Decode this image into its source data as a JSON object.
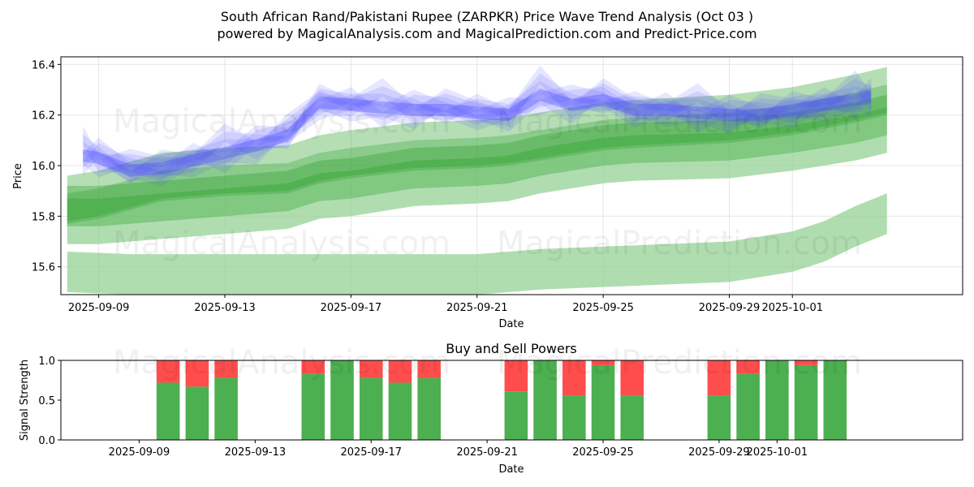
{
  "figure": {
    "title_line1": "South African Rand/Pakistani Rupee (ZARPKR) Price Wave Trend Analysis (Oct 03 )",
    "title_line2": "powered by MagicalAnalysis.com and MagicalPrediction.com and Predict-Price.com"
  },
  "watermarks": {
    "left": "MagicalAnalysis.com",
    "right": "MagicalPrediction.com"
  },
  "colors": {
    "blue_band": "#4d4dff",
    "green_band": "#2ca02c",
    "light_green_band": "#8fcf8f",
    "buy": "#4caf50",
    "sell": "#ff4d4d",
    "grid": "#e6e6e6"
  },
  "chart_data": [
    {
      "type": "area",
      "name": "price-wave-chart",
      "title": "",
      "xlabel": "Date",
      "ylabel": "Price",
      "x_ticks": [
        "2025-09-09",
        "2025-09-13",
        "2025-09-17",
        "2025-09-21",
        "2025-09-25",
        "2025-09-29",
        "2025-10-01"
      ],
      "y_ticks": [
        "15.6",
        "15.8",
        "16.0",
        "16.2",
        "16.4"
      ],
      "x_range": [
        "2025-09-07.8",
        "2025-10-06.4"
      ],
      "ylim": [
        15.49,
        16.43
      ],
      "grid": true,
      "series": [
        {
          "name": "blue-wave-center",
          "x": [
            "2025-09-08.5",
            "2025-09-09",
            "2025-09-10",
            "2025-09-11",
            "2025-09-12",
            "2025-09-13",
            "2025-09-14",
            "2025-09-15",
            "2025-09-16",
            "2025-09-17",
            "2025-09-18",
            "2025-09-19",
            "2025-09-20",
            "2025-09-21",
            "2025-09-22",
            "2025-09-23",
            "2025-09-24",
            "2025-09-25",
            "2025-09-26",
            "2025-09-27",
            "2025-09-28",
            "2025-09-29",
            "2025-09-30",
            "2025-10-01",
            "2025-10-02",
            "2025-10-03",
            "2025-10-03.5"
          ],
          "values": [
            16.04,
            16.03,
            15.98,
            15.99,
            16.02,
            16.05,
            16.08,
            16.12,
            16.25,
            16.24,
            16.23,
            16.22,
            16.22,
            16.21,
            16.2,
            16.28,
            16.24,
            16.26,
            16.22,
            16.22,
            16.21,
            16.2,
            16.2,
            16.22,
            16.24,
            16.26,
            16.27
          ],
          "band_width": 0.08
        },
        {
          "name": "green-wave-upper",
          "x": [
            "2025-09-08",
            "2025-09-09",
            "2025-09-11",
            "2025-09-13",
            "2025-09-15",
            "2025-09-16",
            "2025-09-17",
            "2025-09-19",
            "2025-09-21",
            "2025-09-22",
            "2025-09-23",
            "2025-09-25",
            "2025-09-26",
            "2025-09-29",
            "2025-10-01",
            "2025-10-03",
            "2025-10-04"
          ],
          "values": [
            15.87,
            15.89,
            15.96,
            15.98,
            15.99,
            16.03,
            16.05,
            16.08,
            16.09,
            16.1,
            16.12,
            16.16,
            16.17,
            16.19,
            16.22,
            16.27,
            16.3
          ],
          "band_width": 0.18
        },
        {
          "name": "green-wave-lower",
          "x": [
            "2025-09-08",
            "2025-09-09",
            "2025-09-11",
            "2025-09-13",
            "2025-09-15",
            "2025-09-16",
            "2025-09-17",
            "2025-09-19",
            "2025-09-21",
            "2025-09-22",
            "2025-09-23",
            "2025-09-25",
            "2025-09-26",
            "2025-09-29",
            "2025-10-01",
            "2025-10-03",
            "2025-10-04"
          ],
          "values": [
            15.8,
            15.8,
            15.82,
            15.84,
            15.86,
            15.9,
            15.91,
            15.95,
            15.96,
            15.97,
            16.0,
            16.04,
            16.05,
            16.06,
            16.09,
            16.13,
            16.16
          ],
          "band_width": 0.16
        },
        {
          "name": "light-green-wave-low",
          "x": [
            "2025-09-08",
            "2025-09-10",
            "2025-09-12",
            "2025-09-15",
            "2025-09-18",
            "2025-09-21",
            "2025-09-22",
            "2025-09-23",
            "2025-09-25",
            "2025-09-27",
            "2025-09-29",
            "2025-09-30",
            "2025-10-01",
            "2025-10-02",
            "2025-10-03",
            "2025-10-04"
          ],
          "values": [
            15.58,
            15.57,
            15.57,
            15.57,
            15.57,
            15.57,
            15.58,
            15.59,
            15.6,
            15.61,
            15.62,
            15.64,
            15.66,
            15.7,
            15.76,
            15.81
          ],
          "band_width": 0.16
        }
      ]
    },
    {
      "type": "bar",
      "name": "buy-sell-powers",
      "title": "Buy and Sell Powers",
      "xlabel": "Date",
      "ylabel": "Signal Strength",
      "x_ticks": [
        "2025-09-09",
        "2025-09-13",
        "2025-09-17",
        "2025-09-21",
        "2025-09-25",
        "2025-09-29",
        "2025-10-01"
      ],
      "y_ticks": [
        "0.0",
        "0.5",
        "1.0"
      ],
      "ylim": [
        0,
        1
      ],
      "categories": [
        "2025-09-10",
        "2025-09-11",
        "2025-09-12",
        "2025-09-15",
        "2025-09-16",
        "2025-09-17",
        "2025-09-18",
        "2025-09-19",
        "2025-09-22",
        "2025-09-23",
        "2025-09-24",
        "2025-09-25",
        "2025-09-26",
        "2025-09-29",
        "2025-09-30",
        "2025-10-01",
        "2025-10-02",
        "2025-10-03"
      ],
      "series": [
        {
          "name": "Buy",
          "values": [
            0.72,
            0.67,
            0.78,
            0.83,
            1.0,
            0.78,
            0.72,
            0.78,
            0.61,
            1.0,
            0.56,
            0.94,
            0.56,
            0.56,
            0.83,
            1.0,
            0.94,
            1.0
          ]
        },
        {
          "name": "Sell",
          "values": [
            0.28,
            0.33,
            0.22,
            0.17,
            0.0,
            0.22,
            0.28,
            0.22,
            0.39,
            0.0,
            0.44,
            0.06,
            0.44,
            0.44,
            0.17,
            0.0,
            0.06,
            0.0
          ]
        }
      ]
    }
  ]
}
